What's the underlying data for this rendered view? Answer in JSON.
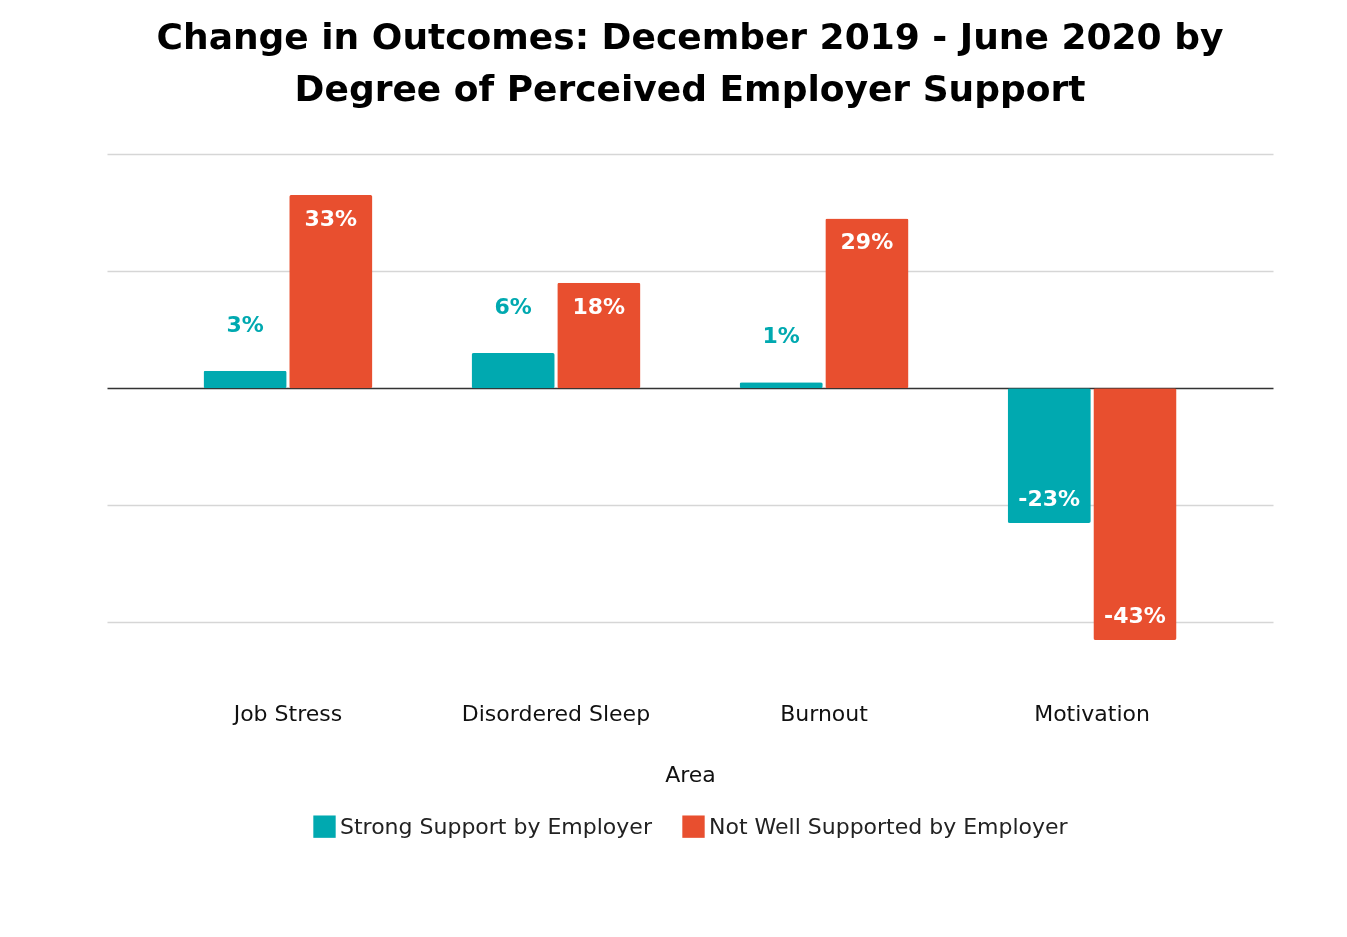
{
  "chart_data": {
    "type": "bar",
    "title": "Change in Outcomes: December 2019 - June 2020 by Degree of Perceived Employer Support",
    "xlabel": "Area",
    "categories": [
      "Job Stress",
      "Disordered Sleep",
      "Burnout",
      "Motivation"
    ],
    "series": [
      {
        "name": "Strong Support by Employer",
        "color": "#00a9b0",
        "values": [
          3,
          6,
          1,
          -23
        ],
        "value_labels": [
          "3%",
          "6%",
          "1%",
          "-23%"
        ]
      },
      {
        "name": "Not Well Supported by Employer",
        "color": "#e84f2f",
        "values": [
          33,
          18,
          29,
          -43
        ],
        "value_labels": [
          "33%",
          "18%",
          "29%",
          "-43%"
        ]
      }
    ],
    "tick_labels": "x",
    "grid": "y",
    "legend": "bottom"
  }
}
